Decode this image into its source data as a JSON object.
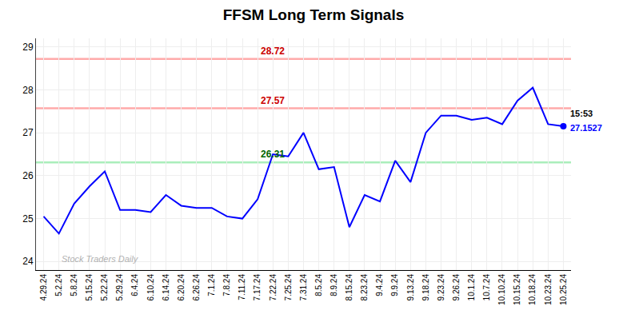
{
  "chart_data": {
    "type": "line",
    "title": "FFSM Long Term Signals",
    "categories": [
      "4.29.24",
      "5.2.24",
      "5.8.24",
      "5.15.24",
      "5.22.24",
      "5.29.24",
      "6.4.24",
      "6.10.24",
      "6.14.24",
      "6.20.24",
      "6.26.24",
      "7.1.24",
      "7.8.24",
      "7.11.24",
      "7.17.24",
      "7.22.24",
      "7.25.24",
      "7.31.24",
      "8.5.24",
      "8.9.24",
      "8.15.24",
      "8.23.24",
      "9.4.24",
      "9.9.24",
      "9.13.24",
      "9.18.24",
      "9.23.24",
      "9.26.24",
      "10.1.24",
      "10.7.24",
      "10.10.24",
      "10.15.24",
      "10.18.24",
      "10.23.24",
      "10.25.24"
    ],
    "values": [
      25.05,
      24.65,
      25.35,
      25.75,
      26.1,
      25.2,
      25.2,
      25.15,
      25.55,
      25.3,
      25.25,
      25.25,
      25.05,
      25.0,
      25.45,
      26.5,
      26.45,
      27.0,
      26.15,
      26.2,
      24.8,
      25.55,
      25.4,
      26.35,
      25.85,
      27.0,
      27.4,
      27.4,
      27.3,
      27.35,
      27.2,
      27.75,
      28.05,
      27.2,
      27.15
    ],
    "color": "blue",
    "ylim": [
      23.8,
      29.2
    ],
    "yticks": [
      24,
      25,
      26,
      27,
      28,
      29
    ],
    "grid": true,
    "hlines": [
      {
        "value": 28.72,
        "label": "28.72",
        "color": "#ffaaaa",
        "label_color": "#cc0000"
      },
      {
        "value": 27.57,
        "label": "27.57",
        "color": "#ffaaaa",
        "label_color": "#cc0000"
      },
      {
        "value": 26.31,
        "label": "26.31",
        "color": "#aaeebb",
        "label_color": "#006600"
      }
    ],
    "last_point_annotations": [
      {
        "text": "15:53",
        "color": "black"
      },
      {
        "text": "27.1527",
        "color": "blue"
      }
    ],
    "watermark": "Stock Traders Daily"
  }
}
